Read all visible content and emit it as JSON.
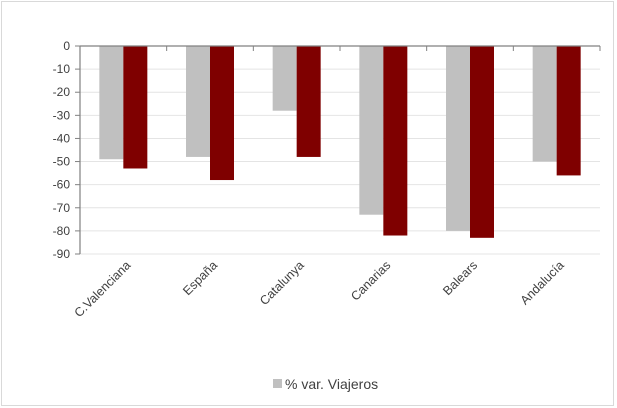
{
  "chart_data": {
    "type": "bar",
    "categories": [
      "C.Valenciana",
      "España",
      "Catalunya",
      "Canarias",
      "Balears",
      "Andalucía"
    ],
    "series": [
      {
        "name": "% var. Viajeros",
        "color": "#c0c0c0",
        "values": [
          -49,
          -48,
          -28,
          -73,
          -80,
          -50
        ]
      },
      {
        "name": "",
        "color": "#7f0000",
        "values": [
          -53,
          -58,
          -48,
          -82,
          -83,
          -56
        ]
      }
    ],
    "ylim": [
      -90,
      0
    ],
    "yticks": [
      0,
      -10,
      -20,
      -30,
      -40,
      -50,
      -60,
      -70,
      -80,
      -90
    ],
    "grid": true,
    "legend_position": "bottom",
    "title": "",
    "xlabel": "",
    "ylabel": ""
  }
}
